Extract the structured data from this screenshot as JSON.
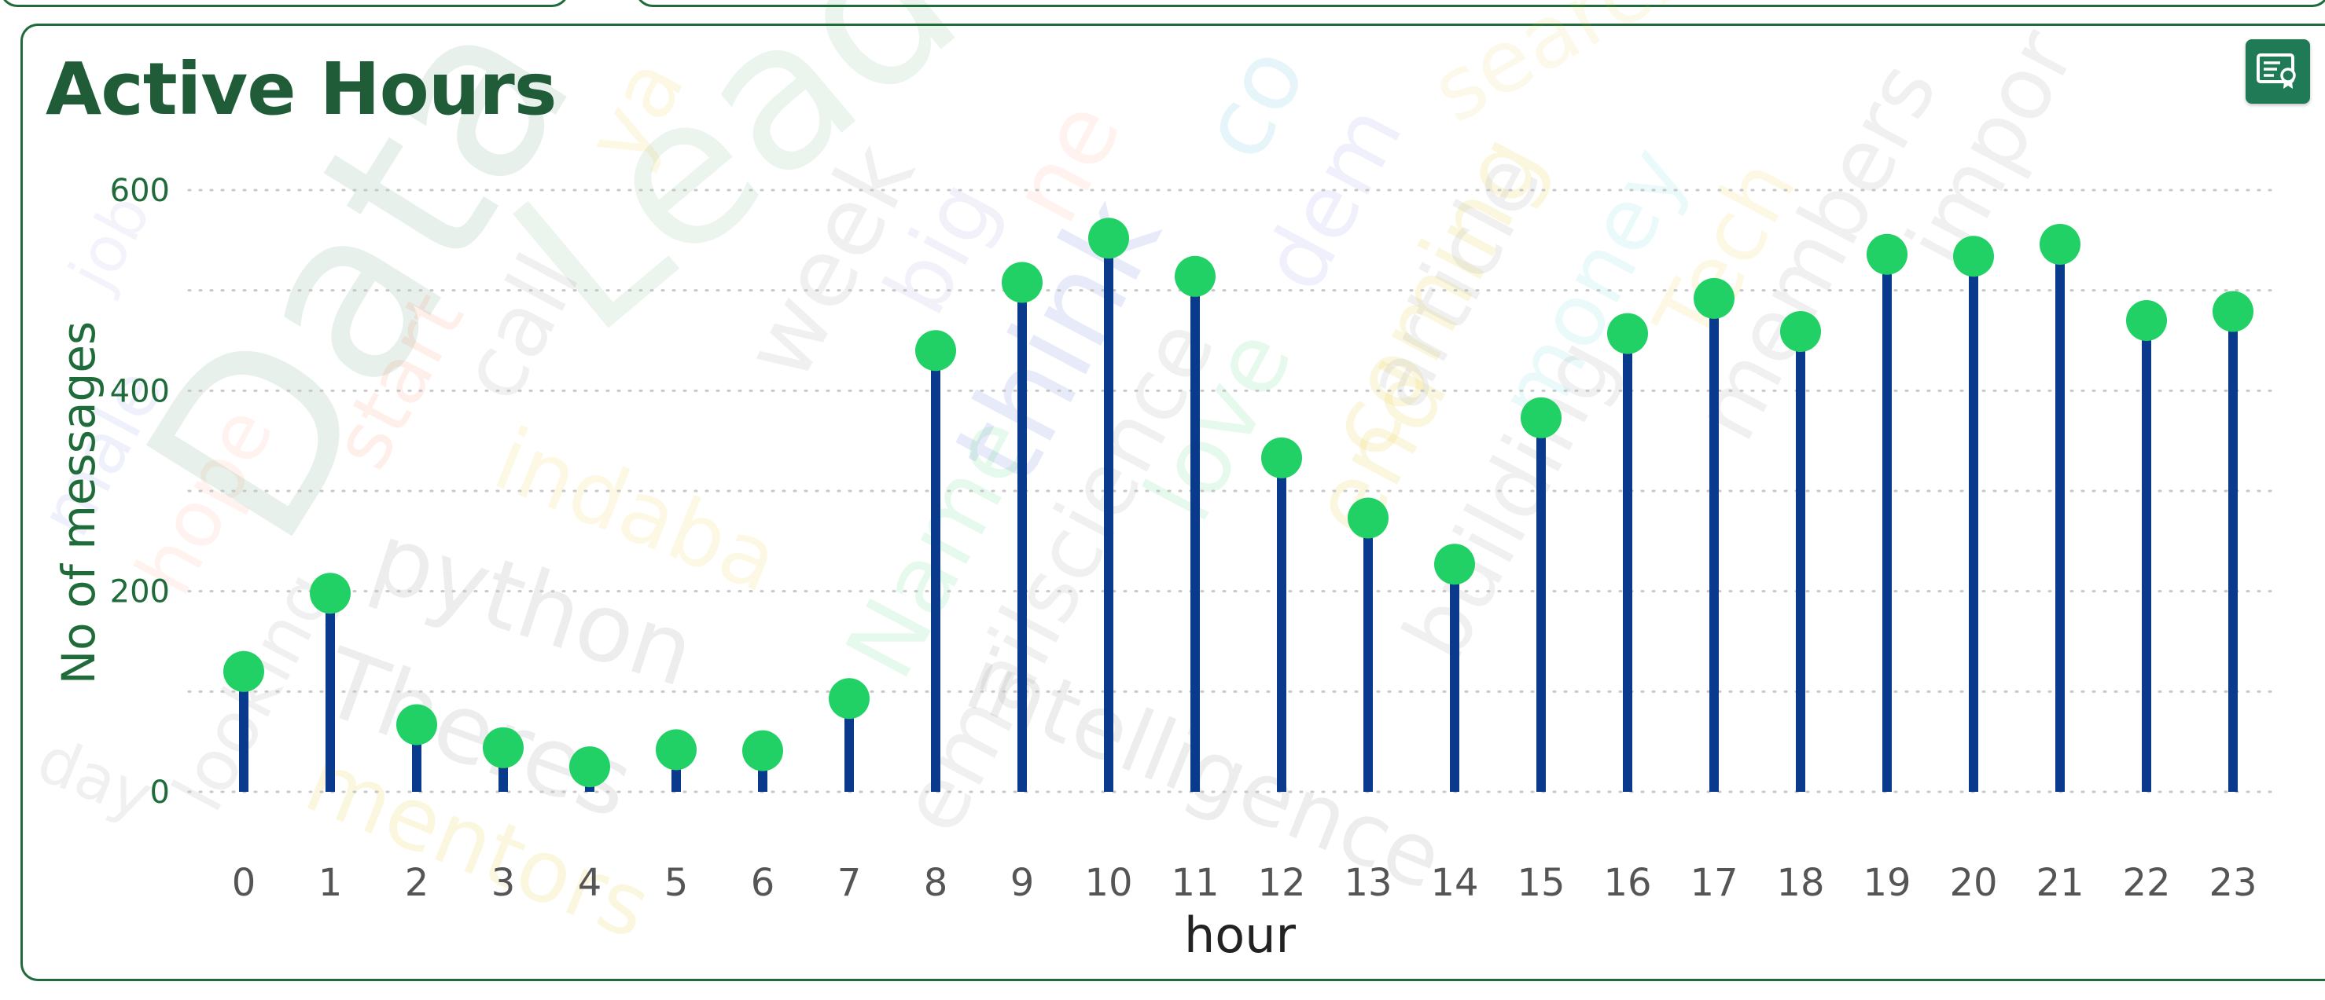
{
  "card": {
    "title": "Active Hours",
    "toolbar_icon": "certificate-icon"
  },
  "background_words": [
    "Data",
    "Lead",
    "call",
    "start",
    "indaba",
    "python",
    "Theres",
    "mentors",
    "week",
    "big",
    "ne",
    "think",
    "co",
    "dem",
    "coming",
    "love",
    "end",
    "Name",
    "emailscience",
    "intelligence",
    "article",
    "building",
    "money",
    "Tech",
    "members",
    "impor",
    "search",
    "looking",
    "hope",
    "day",
    "job",
    "male",
    "ya"
  ],
  "colors": {
    "title": "#1f5c37",
    "stem": "#0a3a8c",
    "marker": "#22d165",
    "axis_text": "#555555",
    "ylabel": "#1f6b3a",
    "grid": "#c8c8c8",
    "border": "#1f6b3a"
  },
  "chart_data": {
    "type": "lollipop",
    "xlabel": "hour",
    "ylabel": "No of messages",
    "categories": [
      "0",
      "1",
      "2",
      "3",
      "4",
      "5",
      "6",
      "7",
      "8",
      "9",
      "10",
      "11",
      "12",
      "13",
      "14",
      "15",
      "16",
      "17",
      "18",
      "19",
      "20",
      "21",
      "22",
      "23"
    ],
    "values": [
      120,
      198,
      67,
      44,
      25,
      42,
      41,
      93,
      440,
      508,
      552,
      514,
      333,
      273,
      227,
      373,
      457,
      492,
      459,
      536,
      534,
      546,
      470,
      479
    ],
    "ylim": [
      0,
      600
    ],
    "yticks": [
      0,
      200,
      400,
      600
    ],
    "grid": true,
    "legend": "none"
  }
}
